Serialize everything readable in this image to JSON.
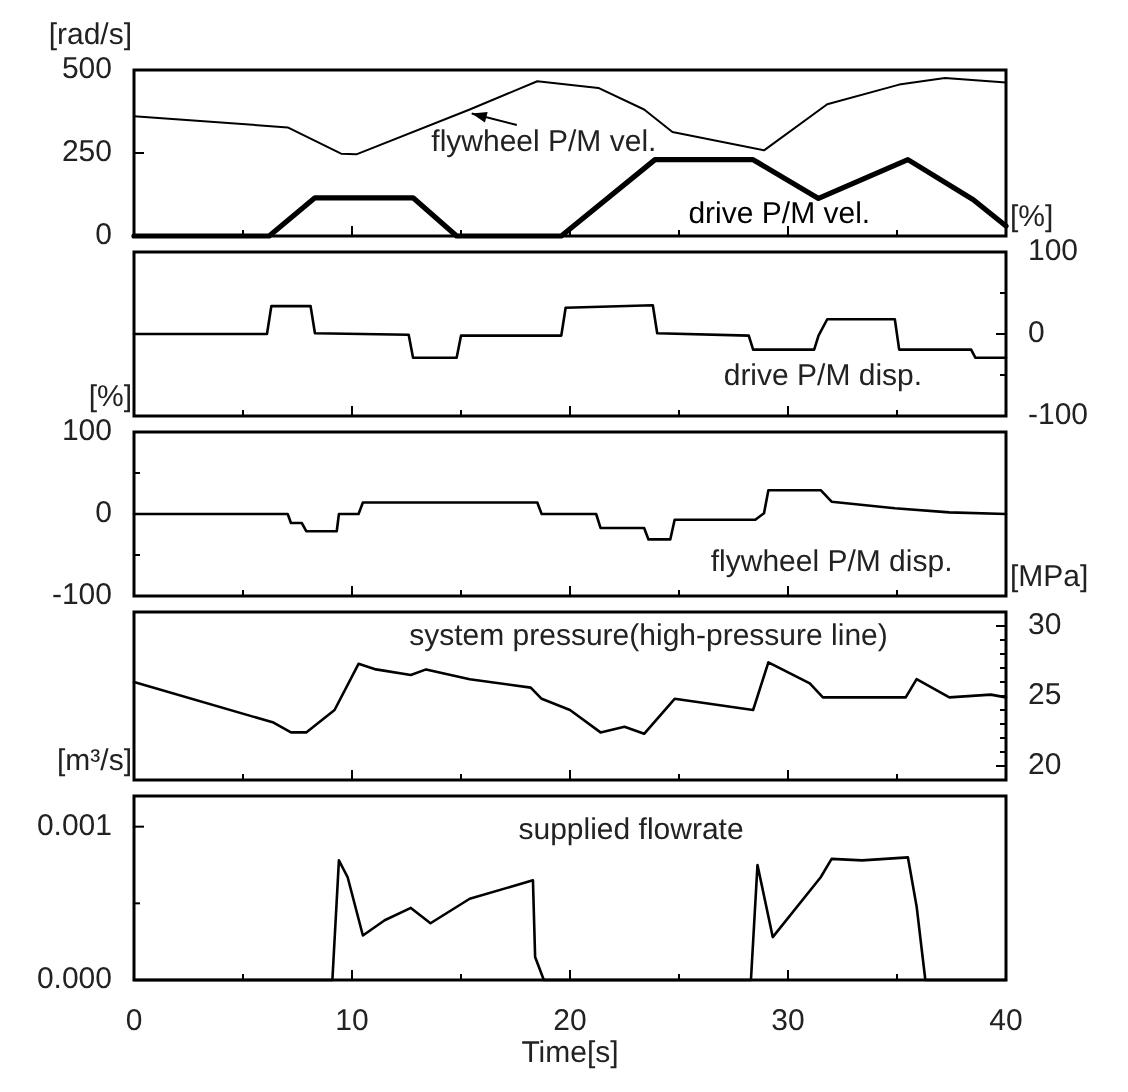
{
  "chart_data": [
    {
      "type": "line",
      "ylabel": "[rad/s]",
      "xlim": [
        0,
        40
      ],
      "xticks": [
        0,
        {
          "value": 5,
          "label": null
        },
        10,
        {
          "value": 15,
          "label": null
        },
        20,
        {
          "value": 25,
          "label": null
        },
        30,
        {
          "value": 35,
          "label": null
        },
        40
      ],
      "ylim": [
        0,
        500
      ],
      "yticks": [
        0,
        250,
        500
      ],
      "tick_labels": "y",
      "series": [
        {
          "name": "flywheel P/M vel.",
          "color": "#000000",
          "x": [
            0,
            7.05,
            9.5,
            10.2,
            15.4,
            18.5,
            21.3,
            23.4,
            24.7,
            28.9,
            31.8,
            35.1,
            37.2,
            40
          ],
          "values": [
            361,
            327,
            248,
            246,
            381,
            466,
            446,
            381,
            313,
            258,
            397,
            456,
            476,
            462
          ]
        },
        {
          "name": "drive P/M vel.",
          "color": "#000000",
          "x": [
            0,
            6.2,
            8.3,
            12.8,
            14.8,
            19.6,
            23.9,
            28.4,
            31.4,
            35.5,
            38.5,
            40
          ],
          "values": [
            0,
            0,
            115,
            115,
            0,
            0,
            230,
            230,
            113,
            230,
            109,
            30
          ]
        }
      ]
    },
    {
      "type": "line",
      "ylabel": "[%]",
      "xlim": [
        0,
        40
      ],
      "xticks": [
        0,
        {
          "value": 5,
          "label": null
        },
        10,
        {
          "value": 15,
          "label": null
        },
        20,
        {
          "value": 25,
          "label": null
        },
        30,
        {
          "value": 35,
          "label": null
        },
        40
      ],
      "ylim": [
        -100,
        100
      ],
      "yticks": [
        -100,
        {
          "value": -50,
          "label": null
        },
        0,
        {
          "value": 50,
          "label": null
        },
        100
      ],
      "tick_labels": "y",
      "series": [
        {
          "name": "drive P/M disp.",
          "color": "#000000",
          "x": [
            0,
            6.1,
            6.3,
            8.1,
            8.3,
            12.6,
            12.8,
            14.8,
            15.0,
            19.6,
            19.8,
            23.8,
            24.0,
            28.2,
            28.4,
            31.2,
            31.4,
            31.8,
            34.9,
            35.1,
            38.4,
            38.6,
            40
          ],
          "values": [
            0,
            0,
            34,
            34,
            1,
            -1,
            -29,
            -29,
            -2,
            -2,
            32,
            35,
            1,
            -2,
            -19,
            -19,
            -2,
            18,
            18,
            -19,
            -19,
            -29,
            -29
          ]
        }
      ]
    },
    {
      "type": "line",
      "ylabel": "[%]",
      "xlim": [
        0,
        40
      ],
      "xticks": [
        0,
        {
          "value": 5,
          "label": null
        },
        10,
        {
          "value": 15,
          "label": null
        },
        20,
        {
          "value": 25,
          "label": null
        },
        30,
        {
          "value": 35,
          "label": null
        },
        40
      ],
      "ylim": [
        -100,
        100
      ],
      "yticks": [
        -100,
        {
          "value": -50,
          "label": null
        },
        0,
        {
          "value": 50,
          "label": null
        },
        100
      ],
      "tick_labels": "y",
      "series": [
        {
          "name": "flywheel P/M disp.",
          "color": "#000000",
          "x": [
            0,
            7.05,
            7.2,
            7.7,
            7.9,
            9.3,
            9.4,
            10.3,
            10.5,
            18.5,
            18.7,
            21.2,
            21.4,
            23.4,
            23.6,
            24.6,
            24.8,
            28.5,
            28.9,
            29.1,
            31.5,
            32.0,
            34.9,
            37.4,
            40
          ],
          "values": [
            0,
            0,
            -11,
            -11,
            -21,
            -21,
            0,
            0,
            14,
            14,
            0,
            0,
            -17,
            -17,
            -31,
            -31,
            -7,
            -7,
            1,
            29,
            29,
            15,
            7,
            2,
            0
          ]
        }
      ]
    },
    {
      "type": "line",
      "ylabel": "[MPa]",
      "xlim": [
        0,
        40
      ],
      "xticks": [
        0,
        {
          "value": 5,
          "label": null
        },
        10,
        {
          "value": 15,
          "label": null
        },
        20,
        {
          "value": 25,
          "label": null
        },
        30,
        {
          "value": 35,
          "label": null
        },
        40
      ],
      "ylim": [
        19,
        31
      ],
      "yticks": [
        20,
        {
          "value": 21,
          "label": null
        },
        {
          "value": 22,
          "label": null
        },
        {
          "value": 23,
          "label": null
        },
        {
          "value": 24,
          "label": null
        },
        25,
        {
          "value": 26,
          "label": null
        },
        {
          "value": 27,
          "label": null
        },
        {
          "value": 28,
          "label": null
        },
        {
          "value": 29,
          "label": null
        },
        30
      ],
      "tick_labels": "y",
      "series": [
        {
          "name": "system pressure(high-pressure line)",
          "color": "#000000",
          "x": [
            0,
            6.4,
            7.2,
            7.9,
            9.2,
            10.3,
            11.1,
            12.7,
            13.4,
            15.4,
            18.2,
            18.7,
            20,
            21.4,
            22.5,
            23.4,
            24.8,
            28.4,
            29.1,
            31,
            31.6,
            35.4,
            35.9,
            37.4,
            39.3,
            40
          ],
          "values": [
            26,
            23.1,
            22.4,
            22.4,
            24,
            27.3,
            26.9,
            26.5,
            26.9,
            26.2,
            25.6,
            24.8,
            24,
            22.4,
            22.8,
            22.3,
            24.8,
            24,
            27.4,
            25.9,
            24.9,
            24.9,
            26.2,
            24.9,
            25.1,
            24.9
          ]
        }
      ]
    },
    {
      "type": "line",
      "ylabel": "[m³/s]",
      "xlabel": "Time[s]",
      "xlim": [
        0,
        40
      ],
      "xticks": [
        0,
        {
          "value": 5,
          "label": null
        },
        10,
        {
          "value": 15,
          "label": null
        },
        20,
        {
          "value": 25,
          "label": null
        },
        30,
        {
          "value": 35,
          "label": null
        },
        40
      ],
      "ylim": [
        0,
        0.0012
      ],
      "yticks": [
        {
          "value": 0,
          "label": "0.000"
        },
        {
          "value": 0.0005,
          "label": null
        },
        {
          "value": 0.001,
          "label": "0.001"
        }
      ],
      "series": [
        {
          "name": "supplied flowrate",
          "color": "#000000",
          "x": [
            0,
            9.1,
            9.4,
            9.8,
            10.5,
            11.5,
            12.7,
            13.6,
            15.4,
            18.3,
            18.4,
            18.8,
            28.3,
            28.6,
            29.3,
            31.5,
            32,
            33.4,
            35.5,
            35.9,
            36.3,
            40
          ],
          "values": [
            0,
            0,
            0.00078,
            0.00067,
            0.00029,
            0.00039,
            0.00047,
            0.00037,
            0.00053,
            0.00065,
            0.00015,
            0,
            0,
            0.00075,
            0.00028,
            0.00067,
            0.00079,
            0.00078,
            0.0008,
            0.00048,
            0,
            0
          ]
        }
      ]
    }
  ]
}
